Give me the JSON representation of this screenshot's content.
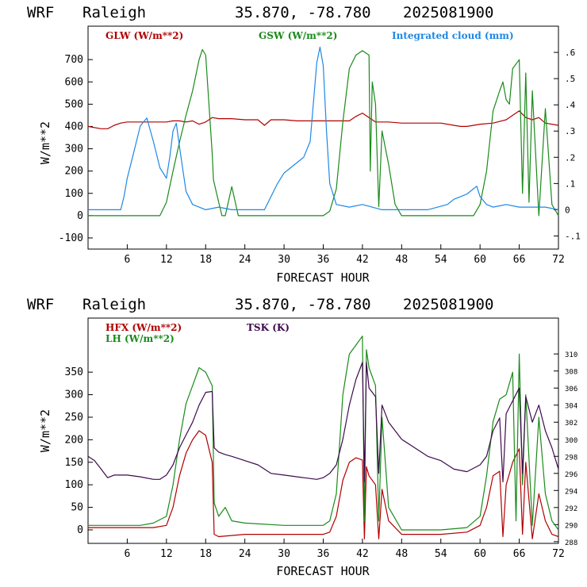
{
  "charts": [
    {
      "header": {
        "model": "WRF",
        "location": "Raleigh",
        "coords": "35.870, -78.780",
        "date": "2025081900"
      },
      "xlabel": "FORECAST HOUR",
      "ylabel": "W/m**2",
      "legend": [
        "GLW (W/m**2)",
        "GSW (W/m**2)",
        "Integrated cloud (mm)"
      ]
    },
    {
      "header": {
        "model": "WRF",
        "location": "Raleigh",
        "coords": "35.870, -78.780",
        "date": "2025081900"
      },
      "xlabel": "FORECAST HOUR",
      "ylabel": "W/m**2",
      "legend": [
        "HFX (W/m**2)",
        "LH  (W/m**2)",
        "TSK (K)"
      ]
    }
  ],
  "colors": {
    "red": "#b00000",
    "green": "#1a8a1a",
    "blue": "#1e88e5",
    "purple": "#3d0a4d"
  },
  "chart_data": [
    {
      "type": "line",
      "xlabel": "FORECAST HOUR",
      "ylabel": "W/m**2",
      "xlim": [
        0,
        72
      ],
      "ylim": [
        -150,
        850
      ],
      "y2lim": [
        -0.15,
        0.7
      ],
      "xticks": [
        6,
        12,
        18,
        24,
        30,
        36,
        42,
        48,
        54,
        60,
        66,
        72
      ],
      "yticks": [
        -100,
        0,
        100,
        200,
        300,
        400,
        500,
        600,
        700
      ],
      "y2ticks": [
        "-.1",
        "0",
        ".1",
        ".2",
        ".3",
        ".4",
        ".5",
        ".6"
      ],
      "y2tick_values": [
        -0.1,
        0,
        0.1,
        0.2,
        0.3,
        0.4,
        0.5,
        0.6
      ],
      "series": [
        {
          "name": "GLW (W/m**2)",
          "color": "red",
          "axis": "left",
          "x": [
            0,
            2,
            3,
            4,
            5,
            6,
            8,
            10,
            12,
            13,
            14,
            15,
            16,
            17,
            18,
            19,
            20,
            22,
            24,
            26,
            27,
            28,
            30,
            32,
            34,
            36,
            38,
            40,
            41,
            42,
            43,
            44,
            46,
            48,
            50,
            52,
            54,
            56,
            57,
            58,
            60,
            62,
            64,
            65,
            66,
            67,
            68,
            69,
            70,
            72
          ],
          "y": [
            400,
            390,
            390,
            405,
            415,
            420,
            420,
            420,
            420,
            425,
            425,
            420,
            425,
            410,
            420,
            440,
            435,
            435,
            430,
            430,
            405,
            430,
            430,
            425,
            425,
            425,
            425,
            425,
            445,
            460,
            440,
            420,
            420,
            415,
            415,
            415,
            415,
            405,
            400,
            400,
            410,
            415,
            430,
            450,
            470,
            440,
            430,
            440,
            415,
            405
          ]
        },
        {
          "name": "GSW (W/m**2)",
          "color": "green",
          "axis": "left",
          "x": [
            0,
            10,
            11,
            12,
            13,
            14,
            15,
            16,
            17,
            17.5,
            18,
            19,
            19.2,
            20,
            20.5,
            21,
            22,
            23,
            24,
            36,
            37,
            38,
            39,
            40,
            41,
            42,
            43,
            43.2,
            43.5,
            44,
            44.5,
            45,
            46,
            47,
            48,
            59,
            60,
            61,
            62,
            63,
            63.5,
            64,
            64.5,
            65,
            66,
            66.5,
            67,
            67.5,
            68,
            69,
            70,
            71,
            72
          ],
          "y": [
            0,
            0,
            0,
            60,
            200,
            330,
            450,
            560,
            700,
            745,
            720,
            280,
            160,
            60,
            0,
            0,
            130,
            0,
            0,
            0,
            20,
            120,
            420,
            660,
            720,
            740,
            720,
            200,
            600,
            500,
            40,
            380,
            230,
            50,
            0,
            0,
            50,
            200,
            470,
            560,
            600,
            520,
            500,
            660,
            700,
            100,
            640,
            60,
            560,
            0,
            480,
            50,
            0
          ]
        },
        {
          "name": "Integrated cloud (mm)",
          "color": "blue",
          "axis": "right",
          "x": [
            0,
            5,
            5.5,
            6,
            7,
            8,
            9,
            10,
            11,
            12,
            12.5,
            13,
            13.5,
            14,
            15,
            16,
            17,
            18,
            20,
            22,
            24,
            27,
            28,
            29,
            30,
            31,
            32,
            33,
            34,
            35,
            35.5,
            36,
            36.5,
            37,
            38,
            40,
            42,
            45,
            48,
            51,
            52,
            55,
            56,
            57,
            58,
            59,
            59.5,
            60,
            61,
            62,
            64,
            66,
            68,
            70,
            72
          ],
          "y": [
            0,
            0,
            0.05,
            0.12,
            0.22,
            0.32,
            0.35,
            0.26,
            0.16,
            0.12,
            0.2,
            0.3,
            0.33,
            0.24,
            0.07,
            0.02,
            0.01,
            0.0,
            0.01,
            0.0,
            0.0,
            0.0,
            0.05,
            0.1,
            0.14,
            0.16,
            0.18,
            0.2,
            0.26,
            0.56,
            0.62,
            0.55,
            0.3,
            0.1,
            0.02,
            0.01,
            0.02,
            0.0,
            0.0,
            0.0,
            0.0,
            0.02,
            0.04,
            0.05,
            0.06,
            0.08,
            0.09,
            0.05,
            0.02,
            0.01,
            0.02,
            0.01,
            0.01,
            0.01,
            0.0
          ]
        }
      ]
    },
    {
      "type": "line",
      "xlabel": "FORECAST HOUR",
      "ylabel": "W/m**2",
      "xlim": [
        0,
        72
      ],
      "ylim": [
        -30,
        470
      ],
      "y2lim": [
        287.8,
        314.2
      ],
      "xticks": [
        6,
        12,
        18,
        24,
        30,
        36,
        42,
        48,
        54,
        60,
        66,
        72
      ],
      "yticks": [
        0,
        50,
        100,
        150,
        200,
        250,
        300,
        350
      ],
      "y2ticks": [
        288,
        290,
        292,
        294,
        296,
        298,
        300,
        302,
        304,
        306,
        308,
        310
      ],
      "series": [
        {
          "name": "HFX (W/m**2)",
          "color": "red",
          "axis": "left",
          "x": [
            0,
            4,
            8,
            10,
            12,
            13,
            14,
            15,
            16,
            17,
            18,
            19,
            19.3,
            20,
            24,
            30,
            36,
            37,
            38,
            39,
            40,
            41,
            42,
            42.3,
            42.6,
            43,
            44,
            44.5,
            45,
            46,
            48,
            54,
            58,
            60,
            61,
            62,
            63,
            63.5,
            64,
            65,
            66,
            66.5,
            67,
            68,
            69,
            70,
            71,
            72
          ],
          "y": [
            5,
            5,
            5,
            5,
            10,
            50,
            120,
            170,
            200,
            220,
            210,
            150,
            -10,
            -15,
            -10,
            -10,
            -10,
            -5,
            30,
            110,
            150,
            160,
            155,
            -20,
            140,
            120,
            100,
            -20,
            90,
            20,
            -10,
            -10,
            -5,
            10,
            50,
            120,
            130,
            -15,
            100,
            150,
            180,
            -10,
            150,
            -20,
            80,
            20,
            -10,
            -15
          ]
        },
        {
          "name": "LH  (W/m**2)",
          "color": "green",
          "axis": "left",
          "x": [
            0,
            4,
            8,
            10,
            12,
            13,
            14,
            15,
            16,
            17,
            18,
            19,
            19.3,
            20,
            21,
            22,
            24,
            30,
            36,
            37,
            38,
            39,
            40,
            41,
            42,
            42.3,
            42.6,
            43,
            44,
            44.5,
            45,
            46,
            48,
            54,
            58,
            60,
            61,
            62,
            63,
            64,
            65,
            65.5,
            66,
            66.5,
            67,
            68,
            69,
            70,
            71,
            72
          ],
          "y": [
            10,
            10,
            10,
            15,
            30,
            100,
            200,
            280,
            320,
            360,
            350,
            320,
            60,
            30,
            50,
            20,
            15,
            10,
            10,
            20,
            80,
            300,
            390,
            410,
            430,
            20,
            400,
            360,
            320,
            20,
            250,
            50,
            0,
            0,
            5,
            30,
            120,
            240,
            290,
            300,
            350,
            20,
            390,
            100,
            300,
            10,
            250,
            80,
            20,
            0
          ]
        },
        {
          "name": "TSK (K)",
          "color": "purple",
          "axis": "right",
          "x": [
            0,
            1,
            2,
            3,
            4,
            6,
            8,
            10,
            11,
            12,
            13,
            14,
            15,
            16,
            17,
            18,
            19,
            19.3,
            20,
            21,
            22,
            24,
            26,
            28,
            30,
            33,
            35,
            36,
            37,
            38,
            39,
            40,
            41,
            42,
            42.3,
            42.6,
            43,
            44,
            44.5,
            45,
            46,
            48,
            50,
            52,
            54,
            56,
            58,
            60,
            61,
            62,
            63,
            63.5,
            64,
            65,
            66,
            66.5,
            67,
            68,
            69,
            70,
            71,
            72
          ],
          "y": [
            298,
            297.5,
            296.5,
            295.5,
            295.8,
            295.8,
            295.6,
            295.3,
            295.3,
            295.8,
            297,
            299,
            300.5,
            302,
            304,
            305.5,
            305.6,
            299,
            298.5,
            298.2,
            298,
            297.5,
            297,
            296,
            295.8,
            295.5,
            295.3,
            295.5,
            296,
            297,
            300,
            304,
            307,
            309,
            295,
            309,
            306,
            305,
            296,
            304,
            302,
            300,
            299,
            298,
            297.5,
            296.5,
            296.2,
            297,
            298,
            301,
            302.5,
            295,
            303,
            304.5,
            306,
            296,
            305,
            302,
            304,
            301,
            299,
            296.5
          ]
        }
      ]
    }
  ]
}
